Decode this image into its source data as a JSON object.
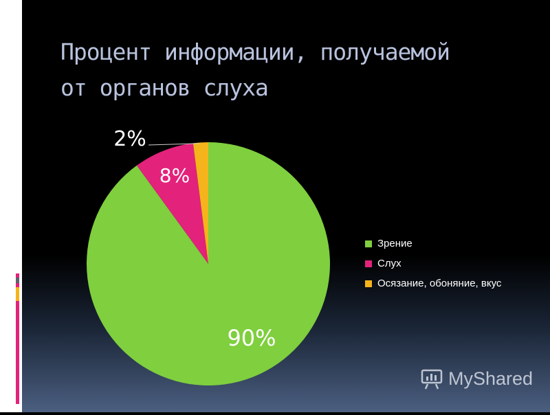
{
  "slide": {
    "title_line1": "Процент информации, получаемой",
    "title_line2": "от органов слуха"
  },
  "chart_data": {
    "type": "pie",
    "categories": [
      "Зрение",
      "Слух",
      "Осязание, обоняние, вкус"
    ],
    "values": [
      90,
      8,
      2
    ],
    "labels": [
      "90%",
      "8%",
      "2%"
    ],
    "colors": [
      "#7fcf3e",
      "#e3227b",
      "#f5b41b"
    ],
    "legend_position": "right",
    "start_angle": "top, clockwise from the 2% slice end"
  },
  "colors": {
    "label_light": "#ffffff",
    "label_dark": "#ffffff",
    "title": "#b9c3de"
  },
  "watermark": {
    "text": "MyShared",
    "icon": "myshared-logo-icon"
  }
}
